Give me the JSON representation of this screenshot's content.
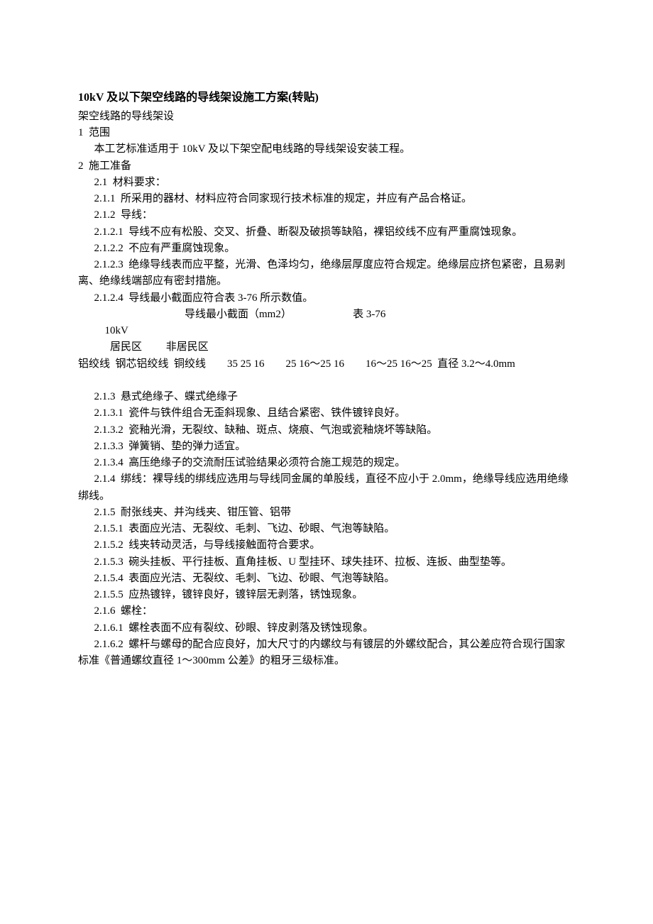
{
  "title": "10kV 及以下架空线路的导线架设施工方案(转贴)",
  "subtitle": "架空线路的导线架设",
  "s1_head": "1  范围",
  "s1_text": "本工艺标准适用于 10kV 及以下架空配电线路的导线架设安装工程。",
  "s2_head": "2  施工准备",
  "s2_1": "2.1  材料要求：",
  "s2_1_1": "2.1.1  所采用的器材、材料应符合同家现行技术标准的规定，并应有产品合格证。",
  "s2_1_2": "2.1.2  导线：",
  "s2_1_2_1": "2.1.2.1  导线不应有松股、交叉、折叠、断裂及破损等缺陷，裸铝绞线不应有严重腐蚀现象。",
  "s2_1_2_2": "2.1.2.2  不应有严重腐蚀现象。",
  "s2_1_2_3": "2.1.2.3  绝缘导线表而应平整，光滑、色泽均匀，绝缘层厚度应符合规定。绝缘层应挤包紧密，且易剥离、绝缘线端部应有密封措施。",
  "s2_1_2_4": "2.1.2.4  导线最小截面应符合表 3-76 所示数值。",
  "table_caption": "导线最小截面（mm2）                       表 3-76",
  "table_l1": "10kV",
  "table_l2": "居民区         非居民区",
  "table_l3": "铝绞线  钢芯铝绞线  铜绞线        35 25 16        25 16～25 16        16～25 16～25  直径 3.2～4.0mm",
  "s2_1_3": "2.1.3  悬式绝缘子、蝶式绝缘子",
  "s2_1_3_1": "2.1.3.1  瓷件与铁件组合无歪斜现象、且结合紧密、铁件镀锌良好。",
  "s2_1_3_2": "2.1.3.2  瓷釉光滑，无裂纹、缺釉、斑点、烧痕、气泡或瓷釉烧坏等缺陷。",
  "s2_1_3_3": "2.1.3.3  弹簧销、垫的弹力适宜。",
  "s2_1_3_4": "2.1.3.4  高压绝缘子的交流耐压试验结果必须符合施工规范的规定。",
  "s2_1_4": "2.1.4  绑线：裸导线的绑线应选用与导线同金属的单股线，直径不应小于 2.0mm，绝缘导线应选用绝缘绑线。",
  "s2_1_5": "2.1.5  耐张线夹、并沟线夹、钳压管、铝带",
  "s2_1_5_1": "2.1.5.1  表面应光洁、无裂纹、毛刺、飞边、砂眼、气泡等缺陷。",
  "s2_1_5_2": "2.1.5.2  线夹转动灵活，与导线接触面符合要求。",
  "s2_1_5_3": "2.1.5.3  碗头挂板、平行挂板、直角挂板、U 型挂环、球失挂环、拉板、连扳、曲型垫等。",
  "s2_1_5_4": "2.1.5.4  表面应光洁、无裂纹、毛刺、飞边、砂眼、气泡等缺陷。",
  "s2_1_5_5": "2.1.5.5  应热镀锌，镀锌良好，镀锌层无剥落，锈蚀现象。",
  "s2_1_6": "2.1.6  螺栓：",
  "s2_1_6_1": "2.1.6.1  螺栓表面不应有裂纹、砂眼、锌皮剥落及锈蚀现象。",
  "s2_1_6_2": "2.1.6.2  螺杆与螺母的配合应良好，加大尺寸的内螺纹与有镀层的外螺纹配合，其公差应符合现行国家标准《普通螺纹直径 1～300mm 公差》的粗牙三级标准。"
}
